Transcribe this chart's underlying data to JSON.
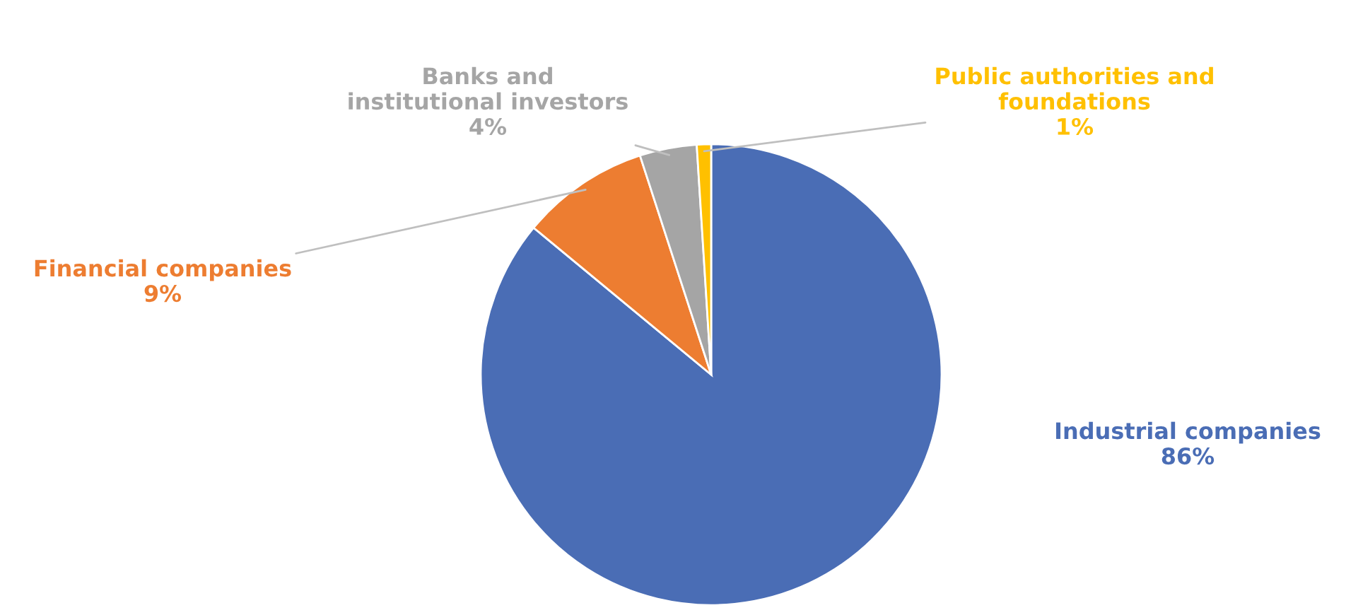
{
  "chart_data": {
    "type": "pie",
    "categories": [
      "Industrial companies",
      "Financial companies",
      "Banks and\ninstitutional investors",
      "Public authorities and\nfoundations"
    ],
    "values": [
      86,
      9,
      4,
      1
    ],
    "value_labels": [
      "86%",
      "9%",
      "4%",
      "1%"
    ],
    "colors": [
      "#4a6db5",
      "#ed7d31",
      "#a5a5a5",
      "#ffc000"
    ],
    "legend": false
  }
}
